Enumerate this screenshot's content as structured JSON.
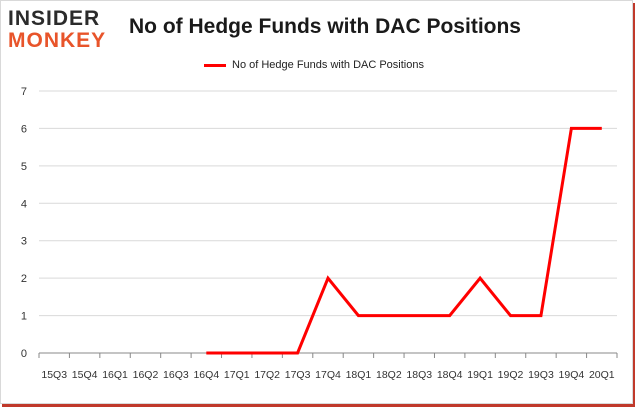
{
  "brand": {
    "line1": "INSIDER",
    "line2": "MONKEY"
  },
  "chart_data": {
    "type": "line",
    "title": "No of Hedge Funds with DAC Positions",
    "categories": [
      "15Q3",
      "15Q4",
      "16Q1",
      "16Q2",
      "16Q3",
      "16Q4",
      "17Q1",
      "17Q2",
      "17Q3",
      "17Q4",
      "18Q1",
      "18Q2",
      "18Q3",
      "18Q4",
      "19Q1",
      "19Q2",
      "19Q3",
      "19Q4",
      "20Q1"
    ],
    "series": [
      {
        "name": "No of Hedge Funds with DAC Positions",
        "values": [
          null,
          null,
          null,
          null,
          null,
          0,
          0,
          0,
          0,
          2,
          1,
          1,
          1,
          1,
          2,
          1,
          1,
          6,
          6
        ]
      }
    ],
    "xlabel": "",
    "ylabel": "",
    "ylim": [
      0,
      7
    ],
    "yticks": [
      0,
      1,
      2,
      3,
      4,
      5,
      6,
      7
    ],
    "grid": true,
    "legend": "top-center",
    "colors": {
      "line": "#ff0000",
      "grid": "#d9d9d9",
      "axis": "#888888"
    }
  }
}
